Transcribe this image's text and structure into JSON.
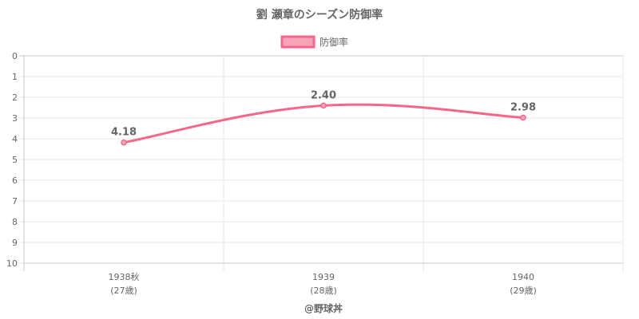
{
  "chart_data": {
    "type": "line",
    "title": "劉 瀬章のシーズン防御率",
    "categories": [
      "1938秋",
      "1939",
      "1940"
    ],
    "category_sublabels": [
      "(27歳)",
      "(28歳)",
      "(29歳)"
    ],
    "series": [
      {
        "name": "防御率",
        "values": [
          4.18,
          2.4,
          2.98
        ],
        "value_labels": [
          "4.18",
          "2.40",
          "2.98"
        ],
        "color": "#f5678a",
        "fill": "#f7a4b8"
      }
    ],
    "y_axis": {
      "min": 0,
      "max": 10,
      "step": 1,
      "reversed": true
    },
    "grid": true,
    "legend_position": "top",
    "footer": "@野球丼"
  }
}
